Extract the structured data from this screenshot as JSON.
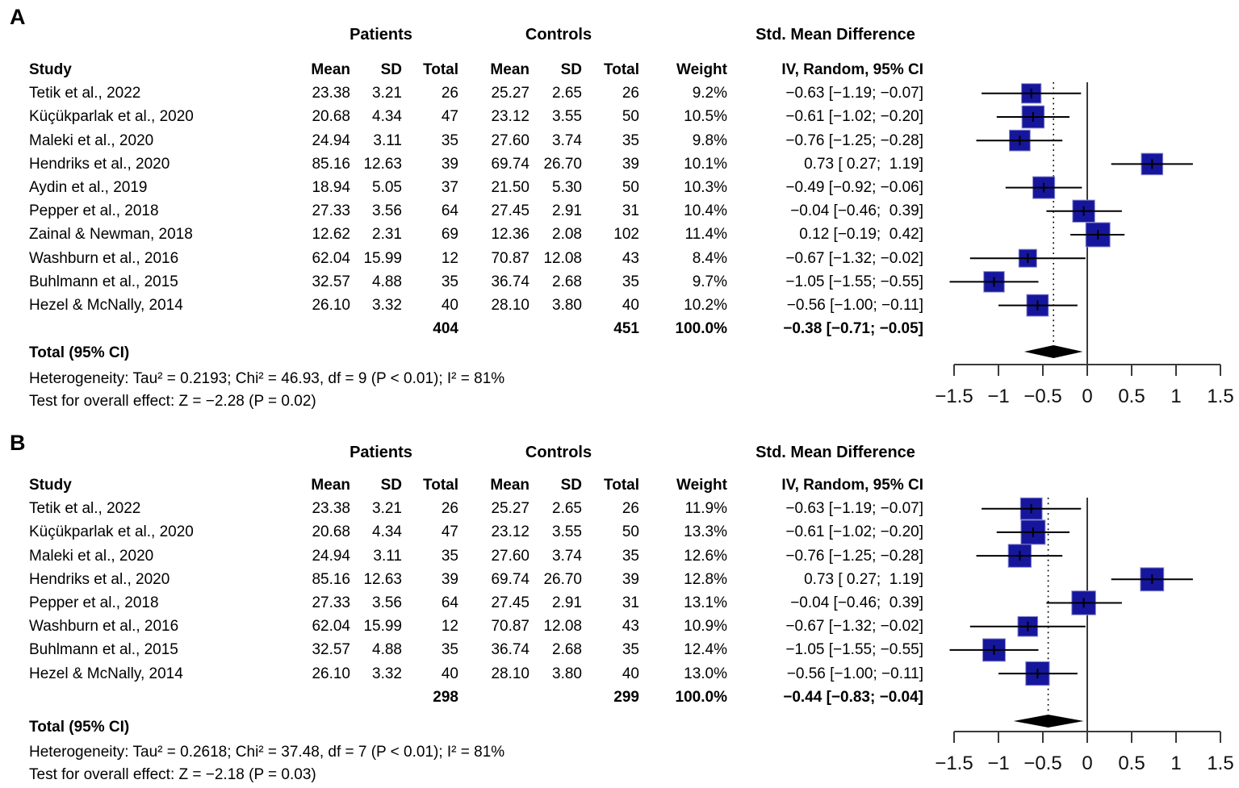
{
  "colors": {
    "square": "#16169c",
    "square_edge": "#8a8ace",
    "diamond": "#000000",
    "ci_line": "#000000",
    "axis_line": "#3a3a3a",
    "tick_label": "#101010"
  },
  "chart_data": [
    {
      "type": "scatter",
      "subtype": "forest-plot",
      "panel_label": "A",
      "group_headers": {
        "patients": "Patients",
        "controls": "Controls",
        "smd": "Std. Mean Difference"
      },
      "columns": {
        "study": "Study",
        "mean": "Mean",
        "sd": "SD",
        "total": "Total",
        "weight": "Weight",
        "ci": "IV, Random, 95% CI"
      },
      "studies": [
        {
          "study": "Tetik et al., 2022",
          "p_mean": "23.38",
          "p_sd": "3.21",
          "p_total": "26",
          "c_mean": "25.27",
          "c_sd": "2.65",
          "c_total": "26",
          "weight_label": "9.2%",
          "weight": 9.2,
          "ci_label": "−0.63 [−1.19; −0.07]",
          "est": -0.63,
          "lo": -1.19,
          "hi": -0.07
        },
        {
          "study": "Küçükparlak et al., 2020",
          "p_mean": "20.68",
          "p_sd": "4.34",
          "p_total": "47",
          "c_mean": "23.12",
          "c_sd": "3.55",
          "c_total": "50",
          "weight_label": "10.5%",
          "weight": 10.5,
          "ci_label": "−0.61 [−1.02; −0.20]",
          "est": -0.61,
          "lo": -1.02,
          "hi": -0.2
        },
        {
          "study": "Maleki et al., 2020",
          "p_mean": "24.94",
          "p_sd": "3.11",
          "p_total": "35",
          "c_mean": "27.60",
          "c_sd": "3.74",
          "c_total": "35",
          "weight_label": "9.8%",
          "weight": 9.8,
          "ci_label": "−0.76 [−1.25; −0.28]",
          "est": -0.76,
          "lo": -1.25,
          "hi": -0.28
        },
        {
          "study": "Hendriks et al., 2020",
          "p_mean": "85.16",
          "p_sd": "12.63",
          "p_total": "39",
          "c_mean": "69.74",
          "c_sd": "26.70",
          "c_total": "39",
          "weight_label": "10.1%",
          "weight": 10.1,
          "ci_label": "0.73 [ 0.27;  1.19]",
          "est": 0.73,
          "lo": 0.27,
          "hi": 1.19
        },
        {
          "study": "Aydin et al., 2019",
          "p_mean": "18.94",
          "p_sd": "5.05",
          "p_total": "37",
          "c_mean": "21.50",
          "c_sd": "5.30",
          "c_total": "50",
          "weight_label": "10.3%",
          "weight": 10.3,
          "ci_label": "−0.49 [−0.92; −0.06]",
          "est": -0.49,
          "lo": -0.92,
          "hi": -0.06
        },
        {
          "study": "Pepper et al., 2018",
          "p_mean": "27.33",
          "p_sd": "3.56",
          "p_total": "64",
          "c_mean": "27.45",
          "c_sd": "2.91",
          "c_total": "31",
          "weight_label": "10.4%",
          "weight": 10.4,
          "ci_label": "−0.04 [−0.46;  0.39]",
          "est": -0.04,
          "lo": -0.46,
          "hi": 0.39
        },
        {
          "study": "Zainal & Newman, 2018",
          "p_mean": "12.62",
          "p_sd": "2.31",
          "p_total": "69",
          "c_mean": "12.36",
          "c_sd": "2.08",
          "c_total": "102",
          "weight_label": "11.4%",
          "weight": 11.4,
          "ci_label": "0.12 [−0.19;  0.42]",
          "est": 0.12,
          "lo": -0.19,
          "hi": 0.42
        },
        {
          "study": "Washburn et al., 2016",
          "p_mean": "62.04",
          "p_sd": "15.99",
          "p_total": "12",
          "c_mean": "70.87",
          "c_sd": "12.08",
          "c_total": "43",
          "weight_label": "8.4%",
          "weight": 8.4,
          "ci_label": "−0.67 [−1.32; −0.02]",
          "est": -0.67,
          "lo": -1.32,
          "hi": -0.02
        },
        {
          "study": "Buhlmann et al., 2015",
          "p_mean": "32.57",
          "p_sd": "4.88",
          "p_total": "35",
          "c_mean": "36.74",
          "c_sd": "2.68",
          "c_total": "35",
          "weight_label": "9.7%",
          "weight": 9.7,
          "ci_label": "−1.05 [−1.55; −0.55]",
          "est": -1.05,
          "lo": -1.55,
          "hi": -0.55
        },
        {
          "study": "Hezel & McNally, 2014",
          "p_mean": "26.10",
          "p_sd": "3.32",
          "p_total": "40",
          "c_mean": "28.10",
          "c_sd": "3.80",
          "c_total": "40",
          "weight_label": "10.2%",
          "weight": 10.2,
          "ci_label": "−0.56 [−1.00; −0.11]",
          "est": -0.56,
          "lo": -1.0,
          "hi": -0.11
        }
      ],
      "totals": {
        "p_total": "404",
        "c_total": "451",
        "weight_label": "100.0%",
        "ci_label": "−0.38 [−0.71; −0.05]",
        "est": -0.38,
        "lo": -0.71,
        "hi": -0.05
      },
      "footer": {
        "total_label": "Total (95% CI)",
        "heterogeneity": "Heterogeneity: Tau² = 0.2193; Chi² = 46.93, df = 9 (P < 0.01); I² = 81%",
        "overall_test": "Test for overall effect: Z = −2.28 (P = 0.02)"
      },
      "axis": {
        "xlim": [
          -1.5,
          1.5
        ],
        "ticks": [
          -1.5,
          -1,
          -0.5,
          0,
          0.5,
          1,
          1.5
        ],
        "tick_labels": [
          "−1.5",
          "−1",
          "−0.5",
          "0",
          "0.5",
          "1",
          "1.5"
        ]
      }
    },
    {
      "type": "scatter",
      "subtype": "forest-plot",
      "panel_label": "B",
      "group_headers": {
        "patients": "Patients",
        "controls": "Controls",
        "smd": "Std. Mean Difference"
      },
      "columns": {
        "study": "Study",
        "mean": "Mean",
        "sd": "SD",
        "total": "Total",
        "weight": "Weight",
        "ci": "IV, Random, 95% CI"
      },
      "studies": [
        {
          "study": "Tetik et al., 2022",
          "p_mean": "23.38",
          "p_sd": "3.21",
          "p_total": "26",
          "c_mean": "25.27",
          "c_sd": "2.65",
          "c_total": "26",
          "weight_label": "11.9%",
          "weight": 11.9,
          "ci_label": "−0.63 [−1.19; −0.07]",
          "est": -0.63,
          "lo": -1.19,
          "hi": -0.07
        },
        {
          "study": "Küçükparlak et al., 2020",
          "p_mean": "20.68",
          "p_sd": "4.34",
          "p_total": "47",
          "c_mean": "23.12",
          "c_sd": "3.55",
          "c_total": "50",
          "weight_label": "13.3%",
          "weight": 13.3,
          "ci_label": "−0.61 [−1.02; −0.20]",
          "est": -0.61,
          "lo": -1.02,
          "hi": -0.2
        },
        {
          "study": "Maleki et al., 2020",
          "p_mean": "24.94",
          "p_sd": "3.11",
          "p_total": "35",
          "c_mean": "27.60",
          "c_sd": "3.74",
          "c_total": "35",
          "weight_label": "12.6%",
          "weight": 12.6,
          "ci_label": "−0.76 [−1.25; −0.28]",
          "est": -0.76,
          "lo": -1.25,
          "hi": -0.28
        },
        {
          "study": "Hendriks et al., 2020",
          "p_mean": "85.16",
          "p_sd": "12.63",
          "p_total": "39",
          "c_mean": "69.74",
          "c_sd": "26.70",
          "c_total": "39",
          "weight_label": "12.8%",
          "weight": 12.8,
          "ci_label": "0.73 [ 0.27;  1.19]",
          "est": 0.73,
          "lo": 0.27,
          "hi": 1.19
        },
        {
          "study": "Pepper et al., 2018",
          "p_mean": "27.33",
          "p_sd": "3.56",
          "p_total": "64",
          "c_mean": "27.45",
          "c_sd": "2.91",
          "c_total": "31",
          "weight_label": "13.1%",
          "weight": 13.1,
          "ci_label": "−0.04 [−0.46;  0.39]",
          "est": -0.04,
          "lo": -0.46,
          "hi": 0.39
        },
        {
          "study": "Washburn et al., 2016",
          "p_mean": "62.04",
          "p_sd": "15.99",
          "p_total": "12",
          "c_mean": "70.87",
          "c_sd": "12.08",
          "c_total": "43",
          "weight_label": "10.9%",
          "weight": 10.9,
          "ci_label": "−0.67 [−1.32; −0.02]",
          "est": -0.67,
          "lo": -1.32,
          "hi": -0.02
        },
        {
          "study": "Buhlmann et al., 2015",
          "p_mean": "32.57",
          "p_sd": "4.88",
          "p_total": "35",
          "c_mean": "36.74",
          "c_sd": "2.68",
          "c_total": "35",
          "weight_label": "12.4%",
          "weight": 12.4,
          "ci_label": "−1.05 [−1.55; −0.55]",
          "est": -1.05,
          "lo": -1.55,
          "hi": -0.55
        },
        {
          "study": "Hezel & McNally, 2014",
          "p_mean": "26.10",
          "p_sd": "3.32",
          "p_total": "40",
          "c_mean": "28.10",
          "c_sd": "3.80",
          "c_total": "40",
          "weight_label": "13.0%",
          "weight": 13.0,
          "ci_label": "−0.56 [−1.00; −0.11]",
          "est": -0.56,
          "lo": -1.0,
          "hi": -0.11
        }
      ],
      "totals": {
        "p_total": "298",
        "c_total": "299",
        "weight_label": "100.0%",
        "ci_label": "−0.44 [−0.83; −0.04]",
        "est": -0.44,
        "lo": -0.83,
        "hi": -0.04
      },
      "footer": {
        "total_label": "Total (95% CI)",
        "heterogeneity": "Heterogeneity: Tau² = 0.2618; Chi² = 37.48, df = 7 (P < 0.01); I² = 81%",
        "overall_test": "Test for overall effect: Z = −2.18 (P = 0.03)"
      },
      "axis": {
        "xlim": [
          -1.5,
          1.5
        ],
        "ticks": [
          -1.5,
          -1,
          -0.5,
          0,
          0.5,
          1,
          1.5
        ],
        "tick_labels": [
          "−1.5",
          "−1",
          "−0.5",
          "0",
          "0.5",
          "1",
          "1.5"
        ]
      }
    }
  ]
}
